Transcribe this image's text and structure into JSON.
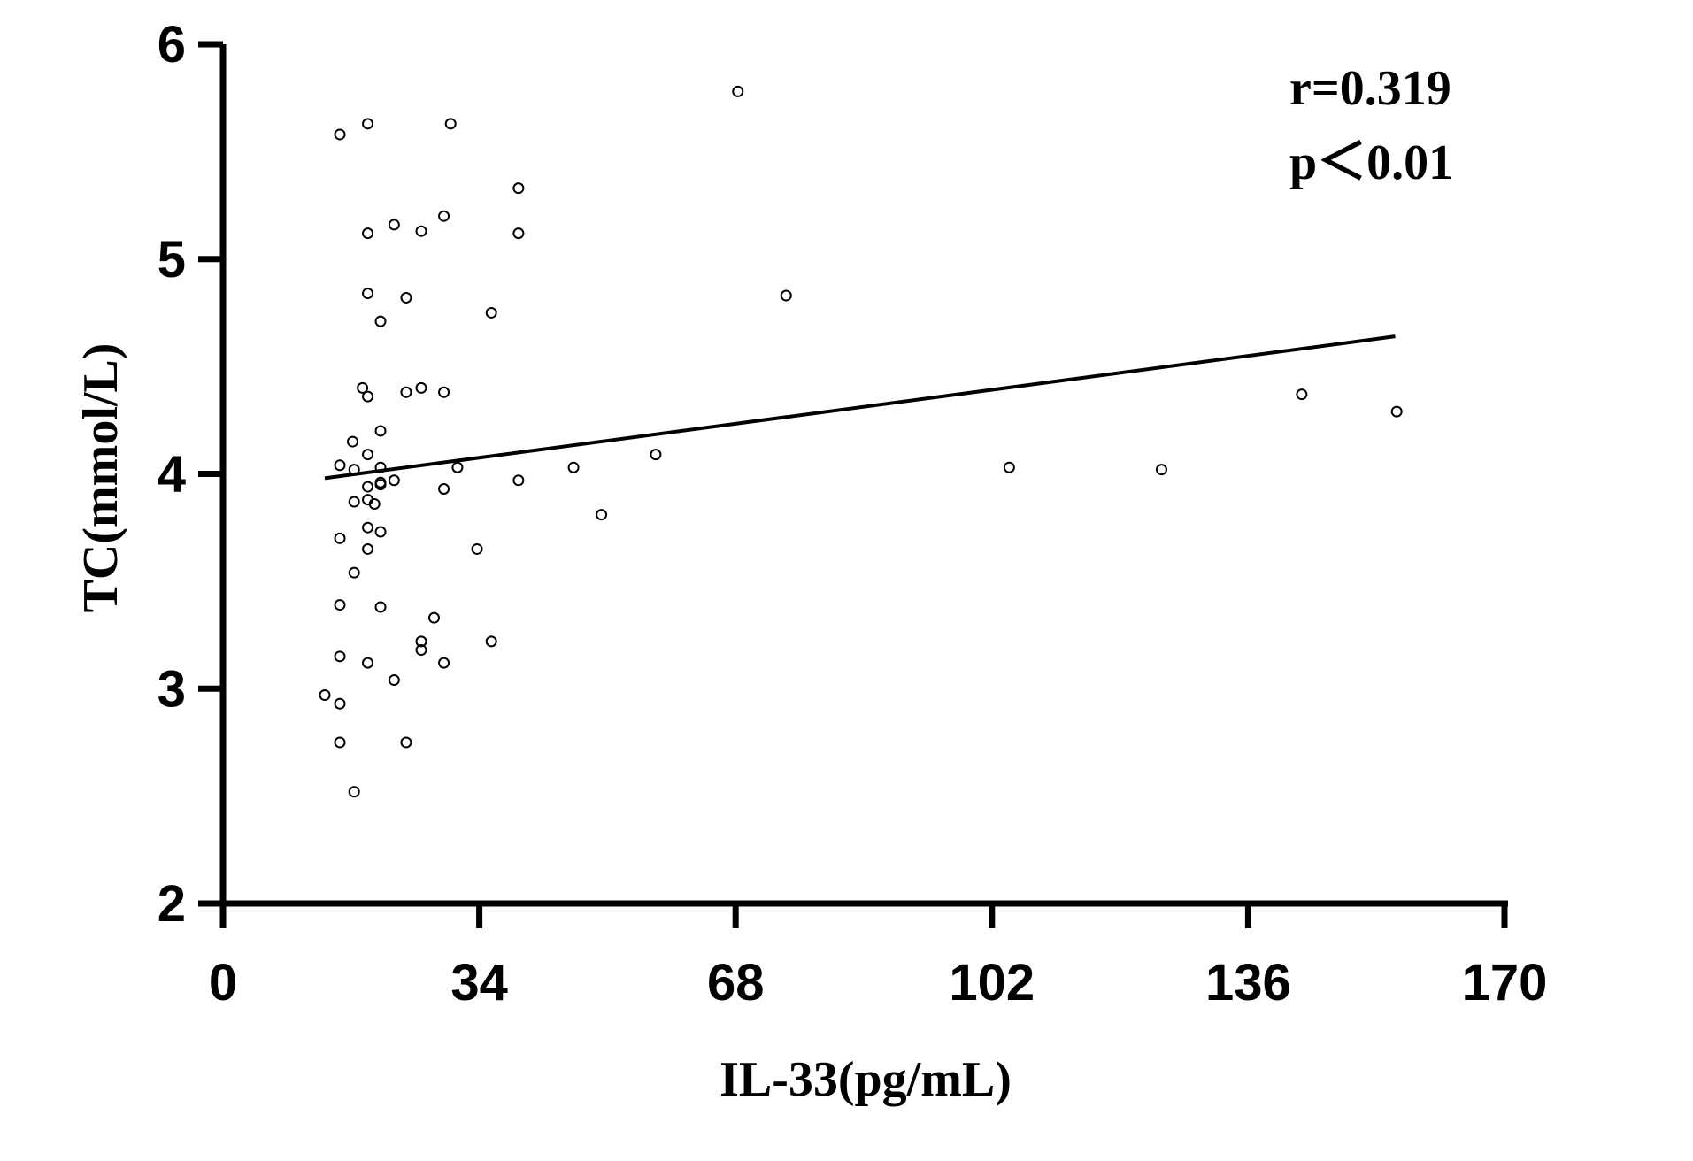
{
  "chart_data": {
    "type": "scatter",
    "xlabel": "IL-33(pg/mL)",
    "ylabel": "TC(mmol/L)",
    "xlim": [
      0,
      170
    ],
    "ylim": [
      2,
      6
    ],
    "xticks": [
      "0",
      "34",
      "68",
      "102",
      "136",
      "170"
    ],
    "yticks": [
      "2",
      "3",
      "4",
      "5",
      "6"
    ],
    "annotations": [
      "r=0.319",
      "p＜0.01"
    ],
    "legend": "none",
    "grid": false,
    "fit_line": {
      "x": [
        13.5,
        155.5
      ],
      "y": [
        3.98,
        4.64
      ]
    },
    "points": [
      [
        15.5,
        5.58
      ],
      [
        19.2,
        5.63
      ],
      [
        30.2,
        5.63
      ],
      [
        68.3,
        5.78
      ],
      [
        39.2,
        5.33
      ],
      [
        29.3,
        5.2
      ],
      [
        22.7,
        5.16
      ],
      [
        26.3,
        5.13
      ],
      [
        19.2,
        5.12
      ],
      [
        39.2,
        5.12
      ],
      [
        19.2,
        4.84
      ],
      [
        24.3,
        4.82
      ],
      [
        74.7,
        4.83
      ],
      [
        35.6,
        4.75
      ],
      [
        20.9,
        4.71
      ],
      [
        18.5,
        4.4
      ],
      [
        26.3,
        4.4
      ],
      [
        19.2,
        4.36
      ],
      [
        24.3,
        4.38
      ],
      [
        29.3,
        4.38
      ],
      [
        143.1,
        4.37
      ],
      [
        155.7,
        4.29
      ],
      [
        20.9,
        4.2
      ],
      [
        17.2,
        4.15
      ],
      [
        19.2,
        4.09
      ],
      [
        15.5,
        4.04
      ],
      [
        17.4,
        4.02
      ],
      [
        20.9,
        4.03
      ],
      [
        31.1,
        4.03
      ],
      [
        46.5,
        4.03
      ],
      [
        57.4,
        4.09
      ],
      [
        104.3,
        4.03
      ],
      [
        124.5,
        4.02
      ],
      [
        22.7,
        3.97
      ],
      [
        39.2,
        3.97
      ],
      [
        20.9,
        3.96
      ],
      [
        19.2,
        3.94
      ],
      [
        29.3,
        3.93
      ],
      [
        20.9,
        3.95
      ],
      [
        17.4,
        3.87
      ],
      [
        19.2,
        3.88
      ],
      [
        20.1,
        3.86
      ],
      [
        50.2,
        3.81
      ],
      [
        19.2,
        3.75
      ],
      [
        20.9,
        3.73
      ],
      [
        15.5,
        3.7
      ],
      [
        19.2,
        3.65
      ],
      [
        33.7,
        3.65
      ],
      [
        17.4,
        3.54
      ],
      [
        15.5,
        3.39
      ],
      [
        20.9,
        3.38
      ],
      [
        28.0,
        3.33
      ],
      [
        26.3,
        3.22
      ],
      [
        35.6,
        3.22
      ],
      [
        26.3,
        3.18
      ],
      [
        15.5,
        3.15
      ],
      [
        19.2,
        3.12
      ],
      [
        29.3,
        3.12
      ],
      [
        22.7,
        3.04
      ],
      [
        13.5,
        2.97
      ],
      [
        15.5,
        2.93
      ],
      [
        15.5,
        2.75
      ],
      [
        24.3,
        2.75
      ],
      [
        17.4,
        2.52
      ]
    ]
  }
}
